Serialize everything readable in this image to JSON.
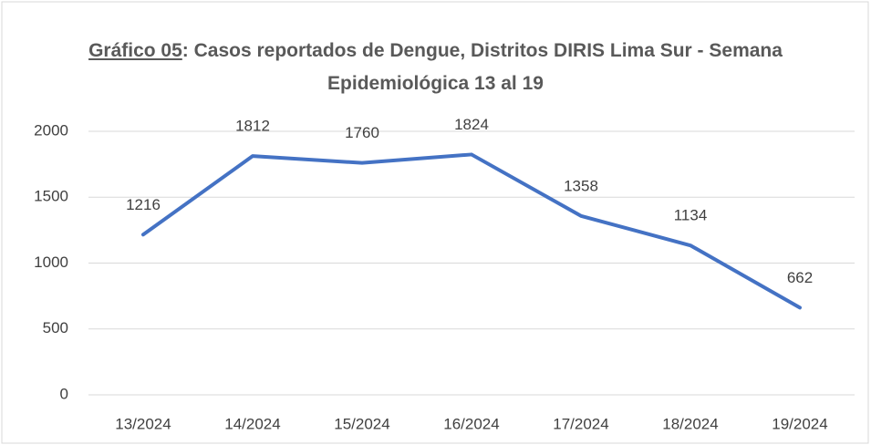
{
  "chart_data": {
    "type": "line",
    "title_prefix": "Gráfico 05",
    "title": ": Casos reportados de Dengue, Distritos DIRIS Lima Sur - Semana Epidemiológica 13 al 19",
    "categories": [
      "13/2024",
      "14/2024",
      "15/2024",
      "16/2024",
      "17/2024",
      "18/2024",
      "19/2024"
    ],
    "values": [
      1216,
      1812,
      1760,
      1824,
      1358,
      1134,
      662
    ],
    "color": "#4472c4",
    "ylim": [
      0,
      2000
    ],
    "yticks": [
      0,
      500,
      1000,
      1500,
      2000
    ],
    "grid": true
  }
}
